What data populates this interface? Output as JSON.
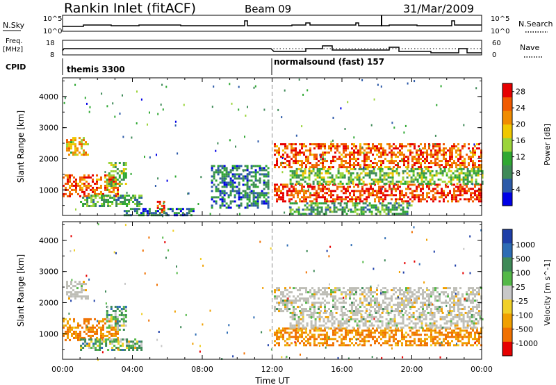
{
  "header": {
    "station": "Rankin Inlet (fitACF)",
    "beam": "Beam 09",
    "date": "31/Mar/2009"
  },
  "summary_panels": {
    "nsky_label": "N.Sky",
    "nsky_ticks": [
      "10^5",
      "10^0"
    ],
    "nsearch_label": "N.Search",
    "freq_label_line1": "Freq.",
    "freq_label_line2": "[MHz]",
    "freq_ticks": [
      "18",
      "8"
    ],
    "nave_label": "Nave",
    "nave_ticks": [
      "60",
      "0"
    ],
    "cpid_label": "CPID",
    "cpid_segments": [
      {
        "name": "themis 3300",
        "start_hour": 0,
        "end_hour": 12.0
      },
      {
        "name": "normalsound (fast) 157",
        "start_hour": 12.0,
        "end_hour": 24
      }
    ]
  },
  "colors": {
    "power_scale": [
      "#0000e6",
      "#2c5aa8",
      "#3f8a58",
      "#2fa832",
      "#9bd43a",
      "#f0c800",
      "#f08c00",
      "#f05a00",
      "#e60000"
    ],
    "velocity_scale": [
      "#1e3fa8",
      "#2d6cb4",
      "#3f8a58",
      "#54b848",
      "#c8c8c8",
      "#f0d028",
      "#f0a000",
      "#f07000",
      "#e60000"
    ],
    "no_data": "#ffffff",
    "ground_scatter": "#bebeb6"
  },
  "chart_data": [
    {
      "type": "heatmap",
      "title": "",
      "xlabel": "Time UT",
      "ylabel": "Slant Range [km]",
      "xlim": [
        0,
        24
      ],
      "ylim": [
        180,
        4600
      ],
      "x_ticks": [
        "00:00",
        "04:00",
        "08:00",
        "12:00",
        "16:00",
        "20:00",
        "00:00"
      ],
      "y_ticks": [
        "1000",
        "2000",
        "3000",
        "4000"
      ],
      "colorbar_label": "Power [dB]",
      "colorbar_ticks": [
        "4",
        "8",
        "12",
        "16",
        "20",
        "24",
        "28"
      ],
      "mode_change_hour": 12.0,
      "echo_regions": [
        {
          "t0": 0.0,
          "t1": 3.2,
          "r0": 800,
          "r1": 1500,
          "power_db": 24
        },
        {
          "t0": 0.2,
          "t1": 1.4,
          "r0": 2150,
          "r1": 2700,
          "power_db": 18
        },
        {
          "t0": 1.0,
          "t1": 4.5,
          "r0": 450,
          "r1": 850,
          "power_db": 10
        },
        {
          "t0": 2.5,
          "t1": 3.6,
          "r0": 1100,
          "r1": 1900,
          "power_db": 12
        },
        {
          "t0": 3.5,
          "t1": 7.5,
          "r0": 200,
          "r1": 420,
          "power_db": 6
        },
        {
          "t0": 5.4,
          "t1": 5.8,
          "r0": 250,
          "r1": 650,
          "power_db": 26
        },
        {
          "t0": 8.5,
          "t1": 11.8,
          "r0": 400,
          "r1": 1800,
          "power_db": 6
        },
        {
          "t0": 12.1,
          "t1": 24.0,
          "r0": 1700,
          "r1": 2500,
          "power_db": 24
        },
        {
          "t0": 12.1,
          "t1": 24.0,
          "r0": 600,
          "r1": 1200,
          "power_db": 26
        },
        {
          "t0": 13.0,
          "t1": 24.0,
          "r0": 1200,
          "r1": 1700,
          "power_db": 12
        },
        {
          "t0": 13.0,
          "t1": 20.0,
          "r0": 250,
          "r1": 600,
          "power_db": 10
        }
      ]
    },
    {
      "type": "heatmap",
      "title": "",
      "xlabel": "Time UT",
      "ylabel": "Slant Range [km]",
      "xlim": [
        0,
        24
      ],
      "ylim": [
        180,
        4600
      ],
      "x_ticks": [
        "00:00",
        "04:00",
        "08:00",
        "12:00",
        "16:00",
        "20:00",
        "00:00"
      ],
      "y_ticks": [
        "1000",
        "2000",
        "3000",
        "4000"
      ],
      "colorbar_label": "Velocity [m s^-1]",
      "colorbar_ticks": [
        "1000",
        "500",
        "100",
        "25",
        "-25",
        "-100",
        "-500",
        "-1000"
      ],
      "mode_change_hour": 12.0,
      "echo_regions": [
        {
          "t0": 0.0,
          "t1": 3.2,
          "r0": 800,
          "r1": 1500,
          "velocity_ms": -300
        },
        {
          "t0": 0.2,
          "t1": 1.4,
          "r0": 2150,
          "r1": 2700,
          "velocity_ms": 0
        },
        {
          "t0": 1.0,
          "t1": 4.5,
          "r0": 450,
          "r1": 850,
          "velocity_ms": 150
        },
        {
          "t0": 2.5,
          "t1": 3.6,
          "r0": 1100,
          "r1": 1900,
          "velocity_ms": 200
        },
        {
          "t0": 12.1,
          "t1": 24.0,
          "r0": 1700,
          "r1": 2500,
          "velocity_ms": 0
        },
        {
          "t0": 12.1,
          "t1": 24.0,
          "r0": 600,
          "r1": 1200,
          "velocity_ms": -300
        },
        {
          "t0": 13.0,
          "t1": 24.0,
          "r0": 1200,
          "r1": 1700,
          "velocity_ms": 0
        }
      ]
    }
  ]
}
